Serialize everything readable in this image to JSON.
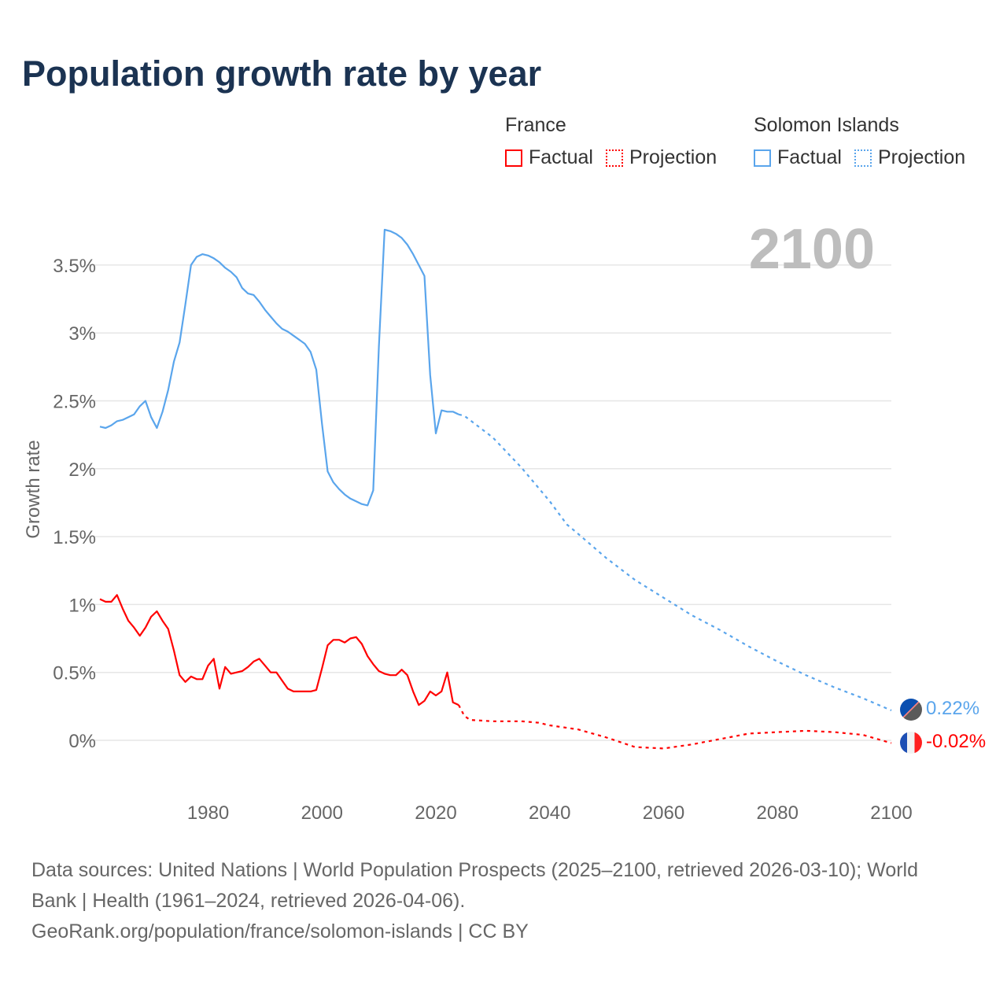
{
  "title": "Population growth rate by year",
  "current_year_label": "2100",
  "legend": {
    "france": {
      "name": "France",
      "factual": "Factual",
      "projection": "Projection",
      "color": "#ff0000"
    },
    "solomon": {
      "name": "Solomon Islands",
      "factual": "Factual",
      "projection": "Projection",
      "color": "#5aa5ec"
    }
  },
  "end_labels": {
    "solomon": "0.22%",
    "france": "-0.02%"
  },
  "footer": {
    "sources": "Data sources: United Nations | World Population Prospects (2025–2100, retrieved 2026-03-10); World Bank | Health (1961–2024, retrieved 2026-04-06).",
    "link": "GeoRank.org/population/france/solomon-islands | CC BY"
  },
  "chart_data": {
    "type": "line",
    "title": "Population growth rate by year",
    "xlabel": "",
    "ylabel": "Growth rate",
    "xlim": [
      1961,
      2100
    ],
    "ylim": [
      -0.3,
      3.9
    ],
    "x_ticks": [
      1980,
      2000,
      2020,
      2040,
      2060,
      2080,
      2100
    ],
    "y_ticks": [
      0,
      0.5,
      1,
      1.5,
      2,
      2.5,
      3,
      3.5
    ],
    "y_tick_labels": [
      "0%",
      "0.5%",
      "1%",
      "1.5%",
      "2%",
      "2.5%",
      "3%",
      "3.5%"
    ],
    "grid": true,
    "legend_position": "top-right",
    "series": [
      {
        "name": "Solomon Islands",
        "kind": "factual",
        "color": "#5aa5ec",
        "x": [
          1961,
          1962,
          1963,
          1964,
          1965,
          1966,
          1967,
          1968,
          1969,
          1970,
          1971,
          1972,
          1973,
          1974,
          1975,
          1976,
          1977,
          1978,
          1979,
          1980,
          1981,
          1982,
          1983,
          1984,
          1985,
          1986,
          1987,
          1988,
          1989,
          1990,
          1991,
          1992,
          1993,
          1994,
          1995,
          1996,
          1997,
          1998,
          1999,
          2000,
          2001,
          2002,
          2003,
          2004,
          2005,
          2006,
          2007,
          2008,
          2009,
          2010,
          2011,
          2012,
          2013,
          2014,
          2015,
          2016,
          2017,
          2018,
          2019,
          2020,
          2021,
          2022,
          2023,
          2024
        ],
        "y": [
          2.31,
          2.3,
          2.32,
          2.35,
          2.36,
          2.38,
          2.4,
          2.46,
          2.5,
          2.38,
          2.3,
          2.42,
          2.58,
          2.79,
          2.93,
          3.21,
          3.5,
          3.56,
          3.58,
          3.57,
          3.55,
          3.52,
          3.48,
          3.45,
          3.41,
          3.33,
          3.29,
          3.28,
          3.23,
          3.17,
          3.12,
          3.07,
          3.03,
          3.01,
          2.98,
          2.95,
          2.92,
          2.86,
          2.73,
          2.33,
          1.98,
          1.9,
          1.85,
          1.81,
          1.78,
          1.76,
          1.74,
          1.73,
          1.84,
          2.9,
          3.76,
          3.75,
          3.73,
          3.7,
          3.65,
          3.58,
          3.5,
          3.42,
          2.69,
          2.26,
          2.43,
          2.42,
          2.42,
          2.4
        ]
      },
      {
        "name": "Solomon Islands",
        "kind": "projection",
        "color": "#5aa5ec",
        "x": [
          2024,
          2025,
          2030,
          2035,
          2040,
          2043,
          2045,
          2050,
          2055,
          2060,
          2065,
          2070,
          2075,
          2080,
          2085,
          2090,
          2095,
          2100
        ],
        "y": [
          2.4,
          2.39,
          2.23,
          2.01,
          1.76,
          1.59,
          1.52,
          1.34,
          1.18,
          1.05,
          0.92,
          0.81,
          0.69,
          0.58,
          0.48,
          0.39,
          0.31,
          0.22
        ]
      },
      {
        "name": "France",
        "kind": "factual",
        "color": "#ff0000",
        "x": [
          1961,
          1962,
          1963,
          1964,
          1965,
          1966,
          1967,
          1968,
          1969,
          1970,
          1971,
          1972,
          1973,
          1974,
          1975,
          1976,
          1977,
          1978,
          1979,
          1980,
          1981,
          1982,
          1983,
          1984,
          1985,
          1986,
          1987,
          1988,
          1989,
          1990,
          1991,
          1992,
          1993,
          1994,
          1995,
          1996,
          1997,
          1998,
          1999,
          2000,
          2001,
          2002,
          2003,
          2004,
          2005,
          2006,
          2007,
          2008,
          2009,
          2010,
          2011,
          2012,
          2013,
          2014,
          2015,
          2016,
          2017,
          2018,
          2019,
          2020,
          2021,
          2022,
          2023,
          2024
        ],
        "y": [
          1.04,
          1.02,
          1.02,
          1.07,
          0.97,
          0.88,
          0.83,
          0.77,
          0.83,
          0.91,
          0.95,
          0.88,
          0.82,
          0.66,
          0.48,
          0.43,
          0.47,
          0.45,
          0.45,
          0.55,
          0.6,
          0.38,
          0.54,
          0.49,
          0.5,
          0.51,
          0.54,
          0.58,
          0.6,
          0.55,
          0.5,
          0.5,
          0.44,
          0.38,
          0.36,
          0.36,
          0.36,
          0.36,
          0.37,
          0.53,
          0.7,
          0.74,
          0.74,
          0.72,
          0.75,
          0.76,
          0.71,
          0.62,
          0.56,
          0.51,
          0.49,
          0.48,
          0.48,
          0.52,
          0.48,
          0.36,
          0.26,
          0.29,
          0.36,
          0.33,
          0.36,
          0.5,
          0.28,
          0.26
        ]
      },
      {
        "name": "France",
        "kind": "projection",
        "color": "#ff0000",
        "x": [
          2024,
          2025,
          2026,
          2030,
          2035,
          2038,
          2040,
          2045,
          2050,
          2055,
          2060,
          2065,
          2070,
          2075,
          2080,
          2085,
          2090,
          2095,
          2100
        ],
        "y": [
          0.26,
          0.18,
          0.15,
          0.14,
          0.14,
          0.13,
          0.11,
          0.08,
          0.02,
          -0.05,
          -0.06,
          -0.03,
          0.01,
          0.05,
          0.06,
          0.07,
          0.06,
          0.04,
          -0.02
        ]
      }
    ]
  }
}
